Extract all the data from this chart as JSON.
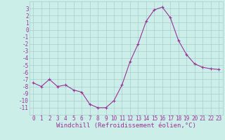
{
  "x": [
    0,
    1,
    2,
    3,
    4,
    5,
    6,
    7,
    8,
    9,
    10,
    11,
    12,
    13,
    14,
    15,
    16,
    17,
    18,
    19,
    20,
    21,
    22,
    23
  ],
  "y": [
    -7.5,
    -8.0,
    -7.0,
    -8.0,
    -7.8,
    -8.5,
    -8.8,
    -10.5,
    -11.0,
    -11.0,
    -10.0,
    -7.8,
    -4.5,
    -2.0,
    1.2,
    2.8,
    3.2,
    1.7,
    -1.5,
    -3.5,
    -4.8,
    -5.3,
    -5.5,
    -5.6
  ],
  "line_color": "#993399",
  "marker": "+",
  "marker_size": 3.5,
  "bg_color": "#cceee8",
  "grid_color": "#aacccc",
  "xlabel": "Windchill (Refroidissement éolien,°C)",
  "xlabel_fontsize": 6.5,
  "ylim": [
    -12,
    4
  ],
  "xlim": [
    -0.5,
    23.5
  ],
  "yticks": [
    3,
    2,
    1,
    0,
    -1,
    -2,
    -3,
    -4,
    -5,
    -6,
    -7,
    -8,
    -9,
    -10,
    -11
  ],
  "xticks": [
    0,
    1,
    2,
    3,
    4,
    5,
    6,
    7,
    8,
    9,
    10,
    11,
    12,
    13,
    14,
    15,
    16,
    17,
    18,
    19,
    20,
    21,
    22,
    23
  ],
  "tick_fontsize": 5.5,
  "line_width": 0.8
}
